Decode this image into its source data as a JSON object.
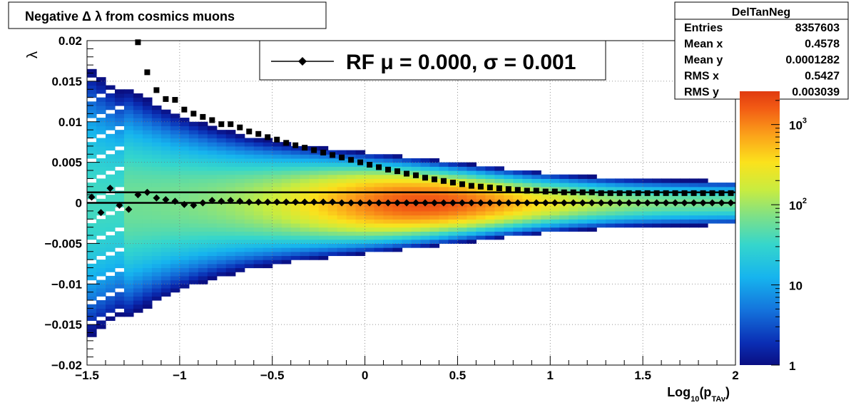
{
  "title": "Negative Δ λ from cosmics muons",
  "stats": {
    "name": "DelTanNeg",
    "rows": [
      {
        "label": "Entries",
        "value": "8357603"
      },
      {
        "label": "Mean x",
        "value": "0.4578"
      },
      {
        "label": "Mean y",
        "value": "0.0001282"
      },
      {
        "label": "RMS x",
        "value": "0.5427"
      },
      {
        "label": "RMS y",
        "value": "0.003039"
      }
    ]
  },
  "legend": {
    "text": "RF μ =  0.000, σ =   0.001"
  },
  "colorbar": {
    "labels": [
      {
        "text": "1",
        "value": 1
      },
      {
        "text": "10",
        "value": 10
      },
      {
        "text": "10",
        "sup": "2",
        "value": 100
      },
      {
        "text": "10",
        "sup": "3",
        "value": 1000
      }
    ],
    "range": [
      1,
      2600
    ],
    "scale": "log"
  },
  "chart_data": {
    "type": "heatmap",
    "title": "Negative Δ λ from cosmics muons",
    "xlabel": {
      "base": "Log",
      "sub1": "10",
      "mid": "(p",
      "sub2": "TAv",
      "end": ")"
    },
    "ylabel": "λ",
    "xlim": [
      -1.5,
      2
    ],
    "ylim": [
      -0.02,
      0.02
    ],
    "grid": true,
    "x_ticks": [
      {
        "v": -1.5,
        "t": "−1.5"
      },
      {
        "v": -1,
        "t": "−1"
      },
      {
        "v": -0.5,
        "t": "−0.5"
      },
      {
        "v": 0,
        "t": "0"
      },
      {
        "v": 0.5,
        "t": "0.5"
      },
      {
        "v": 1,
        "t": "1"
      },
      {
        "v": 1.5,
        "t": "1.5"
      },
      {
        "v": 2,
        "t": "2"
      }
    ],
    "y_ticks": [
      {
        "v": 0.02,
        "t": "0.02"
      },
      {
        "v": 0.015,
        "t": "0.015"
      },
      {
        "v": 0.01,
        "t": "0.01"
      },
      {
        "v": 0.005,
        "t": "0.005"
      },
      {
        "v": 0,
        "t": "0"
      },
      {
        "v": -0.005,
        "t": "−0.005"
      },
      {
        "v": -0.01,
        "t": "−0.01"
      },
      {
        "v": -0.015,
        "t": "−0.015"
      },
      {
        "v": -0.02,
        "t": "−0.02"
      }
    ],
    "z_scale": "log",
    "z_range": [
      1,
      2600
    ],
    "series": [
      {
        "name": "RF",
        "marker": "square",
        "x": [
          -1.225,
          -1.175,
          -1.125,
          -1.075,
          -1.025,
          -0.975,
          -0.925,
          -0.875,
          -0.825,
          -0.775,
          -0.725,
          -0.675,
          -0.625,
          -0.575,
          -0.525,
          -0.475,
          -0.425,
          -0.375,
          -0.325,
          -0.275,
          -0.225,
          -0.175,
          -0.125,
          -0.075,
          -0.025,
          0.025,
          0.075,
          0.125,
          0.175,
          0.225,
          0.275,
          0.325,
          0.375,
          0.425,
          0.475,
          0.525,
          0.575,
          0.625,
          0.675,
          0.725,
          0.775,
          0.825,
          0.875,
          0.925,
          0.975,
          1.025,
          1.075,
          1.125,
          1.175,
          1.225,
          1.275,
          1.325,
          1.375,
          1.425,
          1.475,
          1.525,
          1.575,
          1.625,
          1.675,
          1.725,
          1.775,
          1.825,
          1.875,
          1.925,
          1.975
        ],
        "y": [
          0.0198,
          0.0161,
          0.0139,
          0.0128,
          0.0127,
          0.0115,
          0.011,
          0.0106,
          0.0102,
          0.0097,
          0.0097,
          0.0093,
          0.0088,
          0.0085,
          0.0081,
          0.0078,
          0.0074,
          0.0071,
          0.0068,
          0.0065,
          0.0062,
          0.0059,
          0.0056,
          0.0053,
          0.005,
          0.0047,
          0.0044,
          0.0041,
          0.0039,
          0.0036,
          0.0034,
          0.0031,
          0.0029,
          0.0027,
          0.0025,
          0.0023,
          0.0021,
          0.002,
          0.0019,
          0.0018,
          0.0017,
          0.0016,
          0.0015,
          0.0015,
          0.0014,
          0.0014,
          0.0013,
          0.0013,
          0.0013,
          0.0013,
          0.0012,
          0.0012,
          0.0012,
          0.0012,
          0.0012,
          0.0012,
          0.0012,
          0.0012,
          0.0012,
          0.0012,
          0.0012,
          0.0012,
          0.0012,
          0.0012,
          0.0012
        ]
      },
      {
        "name": "RF μ",
        "marker": "diamond",
        "x": [
          -1.475,
          -1.425,
          -1.375,
          -1.325,
          -1.275,
          -1.225,
          -1.175,
          -1.125,
          -1.075,
          -1.025,
          -0.975,
          -0.925,
          -0.875,
          -0.825,
          -0.775,
          -0.725,
          -0.675,
          -0.625,
          -0.575,
          -0.525,
          -0.475,
          -0.425,
          -0.375,
          -0.325,
          -0.275,
          -0.225,
          -0.175,
          -0.125,
          -0.075,
          -0.025,
          0.025,
          0.075,
          0.125,
          0.175,
          0.225,
          0.275,
          0.325,
          0.375,
          0.425,
          0.475,
          0.525,
          0.575,
          0.625,
          0.675,
          0.725,
          0.775,
          0.825,
          0.875,
          0.925,
          0.975,
          1.025,
          1.075,
          1.125,
          1.175,
          1.225,
          1.275,
          1.325,
          1.375,
          1.425,
          1.475,
          1.525,
          1.575,
          1.625,
          1.675,
          1.725,
          1.775,
          1.825,
          1.875,
          1.925,
          1.975
        ],
        "y": [
          0.0007,
          -0.0012,
          0.0018,
          -0.0003,
          -0.0008,
          0.001,
          0.0013,
          0.0006,
          0.0004,
          0.0002,
          -0.0002,
          -0.0003,
          0.0,
          0.0003,
          0.0002,
          0.0003,
          0.0002,
          0.0001,
          0.0001,
          0.0001,
          0.0001,
          0.0001,
          0.0001,
          0.0001,
          0.0001,
          0.0001,
          0.0001,
          0.0,
          0.0,
          0.0,
          0.0,
          0.0,
          0.0,
          0.0,
          0.0,
          0.0,
          0.0,
          0.0,
          0.0,
          0.0,
          0.0,
          0.0,
          0.0,
          0.0,
          0.0,
          0.0,
          0.0,
          0.0,
          0.0,
          0.0,
          0.0,
          0.0,
          0.0,
          0.0,
          0.0,
          0.0,
          0.0,
          0.0,
          0.0,
          0.0,
          0.0,
          0.0,
          0.0,
          0.0,
          0.0,
          0.0,
          0.0,
          0.0,
          0.0,
          0.0
        ]
      }
    ],
    "reference_lines": [
      {
        "y": 0.0013,
        "from_x": -1.5,
        "to_x": 2
      },
      {
        "y": 0.0,
        "from_x": -1.5,
        "to_x": 2
      }
    ]
  }
}
